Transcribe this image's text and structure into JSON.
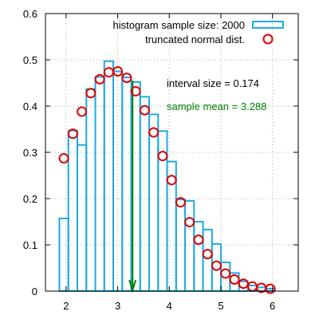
{
  "chart_data": {
    "type": "bar",
    "xlim": [
      1.6,
      6.5
    ],
    "ylim": [
      0,
      0.6
    ],
    "x_ticks": [
      2,
      3,
      4,
      5,
      6
    ],
    "y_ticks": [
      0,
      0.1,
      0.2,
      0.3,
      0.4,
      0.5,
      0.6
    ],
    "x_tick_labels": [
      "2",
      "3",
      "4",
      "5",
      "6"
    ],
    "y_tick_labels": [
      "0",
      "0.1",
      "0.2",
      "0.3",
      "0.4",
      "0.5",
      "0.6"
    ],
    "grid": true,
    "legend_position": "top-right",
    "histogram": {
      "legend": "histogram sample size: 2000",
      "color": "#1fa9e3",
      "bin_width": 0.174,
      "bin_starts": [
        1.87,
        2.044,
        2.218,
        2.392,
        2.566,
        2.74,
        2.914,
        3.088,
        3.262,
        3.436,
        3.61,
        3.784,
        3.958,
        4.132,
        4.306,
        4.48,
        4.654,
        4.828,
        5.002,
        5.176,
        5.35,
        5.524,
        5.698,
        5.872
      ],
      "values": [
        0.157,
        0.347,
        0.316,
        0.437,
        0.463,
        0.497,
        0.475,
        0.462,
        0.452,
        0.42,
        0.382,
        0.346,
        0.28,
        0.198,
        0.195,
        0.15,
        0.133,
        0.102,
        0.062,
        0.039,
        0.021,
        0.012,
        0.008,
        0.005
      ]
    },
    "distribution": {
      "legend": "truncated normal dist.",
      "color": "#e00000",
      "x": [
        1.957,
        2.131,
        2.305,
        2.479,
        2.653,
        2.827,
        3.001,
        3.175,
        3.349,
        3.523,
        3.697,
        3.871,
        4.045,
        4.219,
        4.393,
        4.567,
        4.741,
        4.915,
        5.089,
        5.263,
        5.437,
        5.611,
        5.785,
        5.959
      ],
      "y": [
        0.287,
        0.34,
        0.388,
        0.428,
        0.458,
        0.473,
        0.475,
        0.461,
        0.432,
        0.391,
        0.343,
        0.292,
        0.24,
        0.192,
        0.149,
        0.111,
        0.08,
        0.055,
        0.038,
        0.025,
        0.016,
        0.01,
        0.007,
        0.005
      ]
    },
    "mean_marker": {
      "x": 3.288,
      "y_top": 0.455,
      "color": "#008000"
    },
    "annotations": [
      {
        "text": "interval size = 0.174",
        "color": "#000000"
      },
      {
        "text": "sample mean = 3.288",
        "color": "#008000"
      }
    ]
  }
}
